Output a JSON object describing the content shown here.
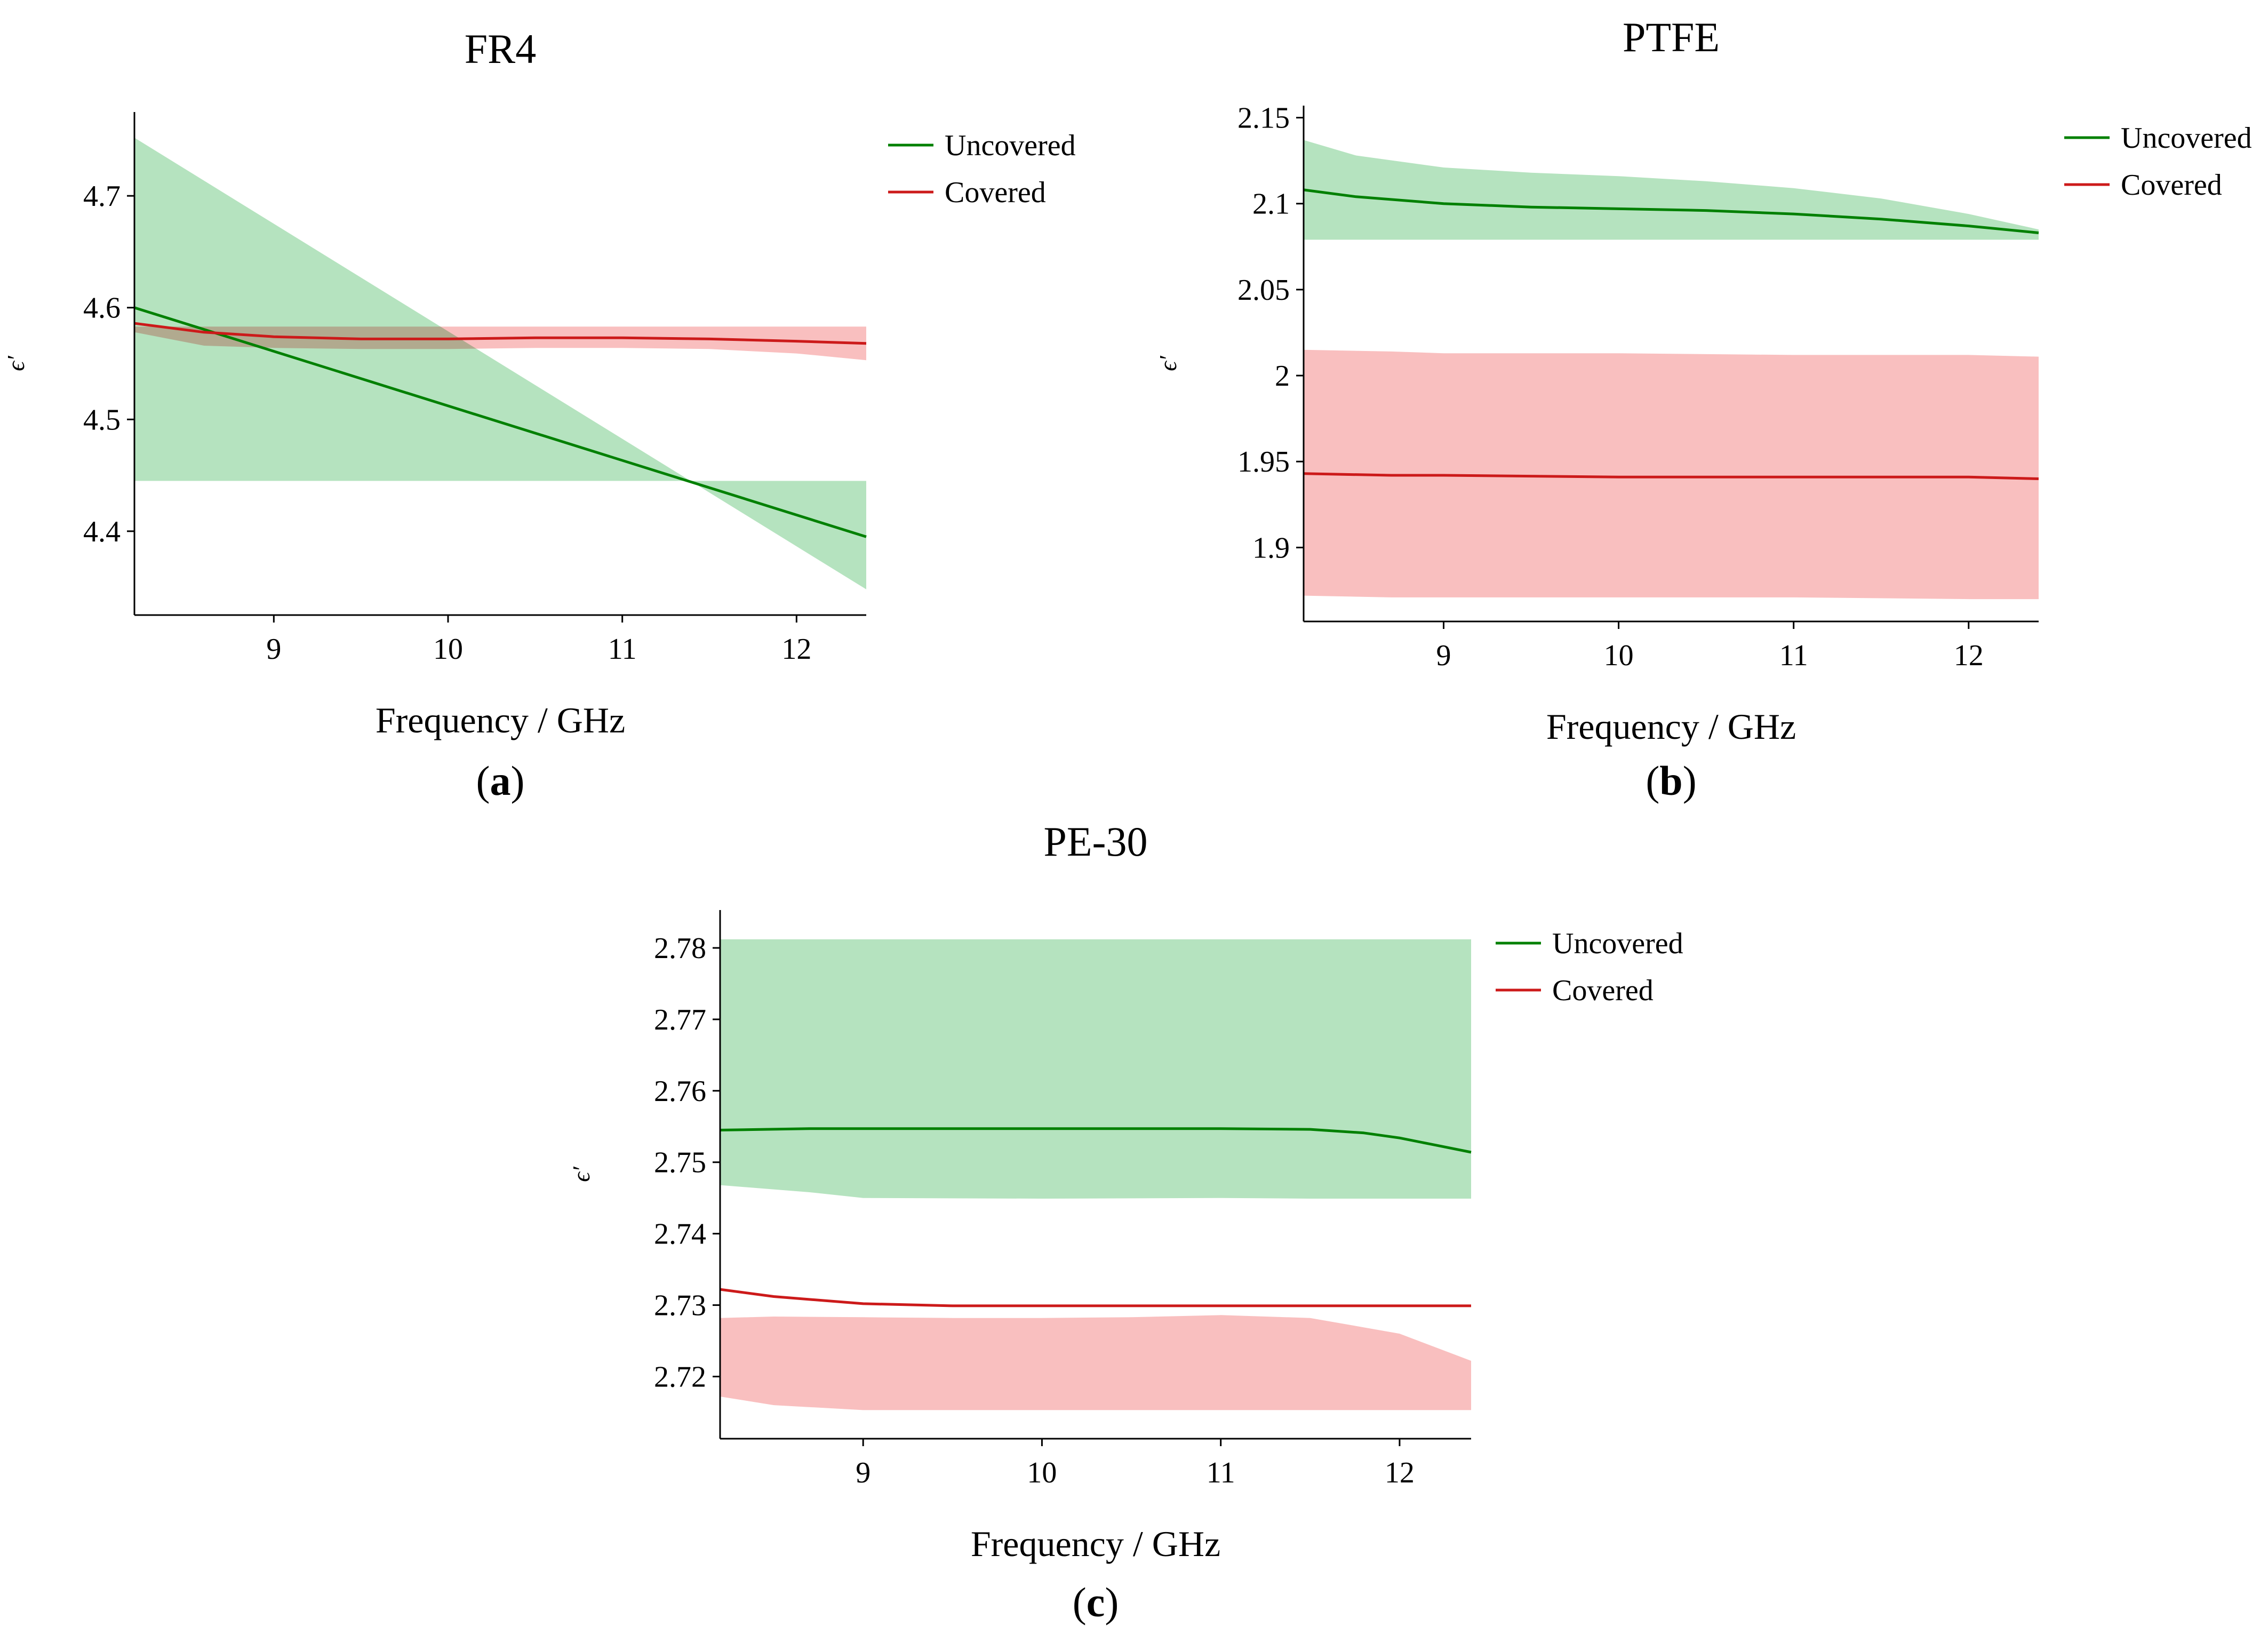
{
  "colors": {
    "uncovered_line": "#008000",
    "covered_line": "#cc1a1a",
    "uncovered_band": "#a8deb4",
    "covered_band": "#f8b4b4"
  },
  "chart_data": [
    {
      "type": "line",
      "title": "FR4",
      "panel_label": "a",
      "xlabel": "Frequency / GHz",
      "ylabel": "ϵ′",
      "xlim": [
        8.2,
        12.4
      ],
      "ylim": [
        4.325,
        4.775
      ],
      "xticks": [
        9,
        10,
        11,
        12
      ],
      "yticks": [
        4.4,
        4.5,
        4.6,
        4.7
      ],
      "ytick_labels": [
        "4.4",
        "4.5",
        "4.6",
        "4.7"
      ],
      "legend_placement": "top-right",
      "grid": false,
      "series": [
        {
          "name": "Uncovered",
          "color": "#008000",
          "x": [
            8.2,
            12.4
          ],
          "y": [
            4.6,
            4.395
          ],
          "band_upper": [
            4.752,
            4.348
          ],
          "band_lower": [
            4.445,
            4.445
          ]
        },
        {
          "name": "Covered",
          "color": "#cc1a1a",
          "x": [
            8.2,
            8.6,
            9.0,
            9.5,
            10.0,
            10.5,
            11.0,
            11.5,
            12.0,
            12.4
          ],
          "y": [
            4.586,
            4.578,
            4.574,
            4.572,
            4.572,
            4.573,
            4.573,
            4.572,
            4.57,
            4.568
          ],
          "band_upper": [
            4.583,
            4.583,
            4.583,
            4.583,
            4.583,
            4.583,
            4.583,
            4.583,
            4.583,
            4.583
          ],
          "band_lower": [
            4.578,
            4.566,
            4.564,
            4.563,
            4.563,
            4.564,
            4.564,
            4.563,
            4.559,
            4.553
          ]
        }
      ]
    },
    {
      "type": "line",
      "title": "PTFE",
      "panel_label": "b",
      "xlabel": "Frequency / GHz",
      "ylabel": "ϵ′",
      "xlim": [
        8.2,
        12.4
      ],
      "ylim": [
        1.857,
        2.157
      ],
      "xticks": [
        9,
        10,
        11,
        12
      ],
      "yticks": [
        1.9,
        1.95,
        2.0,
        2.05,
        2.1,
        2.15
      ],
      "ytick_labels": [
        "1.9",
        "1.95",
        "2",
        "2.05",
        "2.1",
        "2.15"
      ],
      "legend_placement": "top-right",
      "grid": false,
      "series": [
        {
          "name": "Uncovered",
          "color": "#008000",
          "x": [
            8.2,
            8.5,
            9.0,
            9.5,
            10.0,
            10.5,
            11.0,
            11.5,
            12.0,
            12.4
          ],
          "y": [
            2.108,
            2.104,
            2.1,
            2.098,
            2.097,
            2.096,
            2.094,
            2.091,
            2.087,
            2.083
          ],
          "band_upper": [
            2.137,
            2.128,
            2.121,
            2.118,
            2.116,
            2.113,
            2.109,
            2.103,
            2.094,
            2.085
          ],
          "band_lower": [
            2.079,
            2.079,
            2.079,
            2.079,
            2.079,
            2.079,
            2.079,
            2.079,
            2.079,
            2.079
          ]
        },
        {
          "name": "Covered",
          "color": "#cc1a1a",
          "x": [
            8.2,
            8.7,
            9.0,
            10.0,
            11.0,
            12.0,
            12.4
          ],
          "y": [
            1.943,
            1.942,
            1.942,
            1.941,
            1.941,
            1.941,
            1.94
          ],
          "band_upper": [
            2.015,
            2.014,
            2.013,
            2.013,
            2.012,
            2.012,
            2.011
          ],
          "band_lower": [
            1.872,
            1.871,
            1.871,
            1.871,
            1.871,
            1.87,
            1.87
          ]
        }
      ]
    },
    {
      "type": "line",
      "title": "PE-30",
      "panel_label": "c",
      "xlabel": "Frequency / GHz",
      "ylabel": "ϵ′",
      "xlim": [
        8.2,
        12.4
      ],
      "ylim": [
        2.7113,
        2.7853
      ],
      "xticks": [
        9,
        10,
        11,
        12
      ],
      "yticks": [
        2.72,
        2.73,
        2.74,
        2.75,
        2.76,
        2.77,
        2.78
      ],
      "ytick_labels": [
        "2.72",
        "2.73",
        "2.74",
        "2.75",
        "2.76",
        "2.77",
        "2.78"
      ],
      "legend_placement": "top-right",
      "grid": false,
      "series": [
        {
          "name": "Uncovered",
          "color": "#008000",
          "x": [
            8.2,
            8.7,
            9.0,
            10.0,
            11.0,
            11.5,
            11.8,
            12.0,
            12.2,
            12.4
          ],
          "y": [
            2.7545,
            2.7547,
            2.7547,
            2.7547,
            2.7547,
            2.7546,
            2.7541,
            2.7534,
            2.7524,
            2.7514
          ],
          "band_upper": [
            2.7812,
            2.7812,
            2.7812,
            2.7812,
            2.7812,
            2.7812,
            2.7812,
            2.7812,
            2.7812,
            2.7812
          ],
          "band_lower": [
            2.7468,
            2.7458,
            2.745,
            2.7449,
            2.745,
            2.7449,
            2.7449,
            2.7449,
            2.7449,
            2.7449
          ]
        },
        {
          "name": "Covered",
          "color": "#cc1a1a",
          "x": [
            8.2,
            8.5,
            9.0,
            9.5,
            10.0,
            10.5,
            11.0,
            11.5,
            12.0,
            12.4
          ],
          "y": [
            2.7322,
            2.7312,
            2.7302,
            2.7299,
            2.7299,
            2.7299,
            2.7299,
            2.7299,
            2.7299,
            2.7299
          ],
          "band_upper": [
            2.7282,
            2.7284,
            2.7283,
            2.7282,
            2.7282,
            2.7283,
            2.7286,
            2.7282,
            2.726,
            2.7222
          ],
          "band_lower": [
            2.7172,
            2.716,
            2.7153,
            2.7153,
            2.7153,
            2.7153,
            2.7153,
            2.7153,
            2.7153,
            2.7153
          ]
        }
      ]
    }
  ]
}
